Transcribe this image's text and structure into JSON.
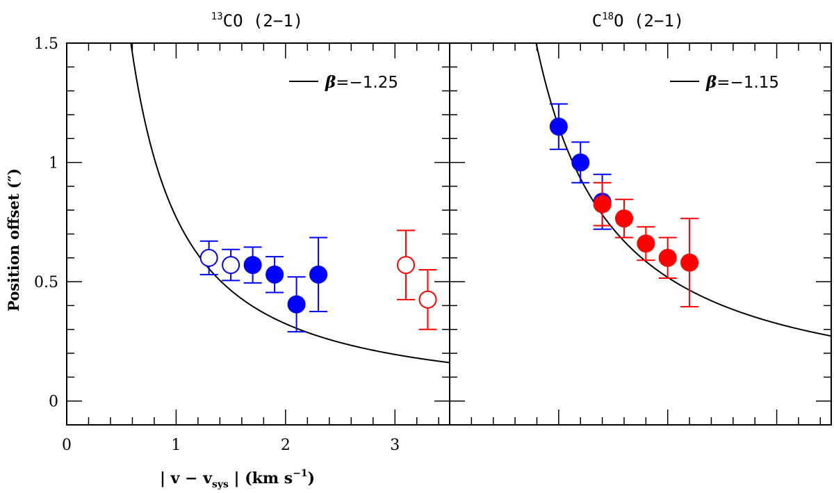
{
  "colors": {
    "blue": "#0000ff",
    "red": "#ff0000",
    "black": "#000000"
  },
  "chart_data": {
    "type": "scatter",
    "ylabel": "Position offset (″)",
    "xlabel": {
      "pre": "| v − v",
      "sub": "sys",
      "mid": " | (km s",
      "sup": "−1",
      "post": ")"
    },
    "ylim": [
      -0.1,
      1.5
    ],
    "y_ticks": [
      "0",
      "0.5",
      "1",
      "1.5"
    ],
    "y_tick_values": [
      0,
      0.5,
      1,
      1.5
    ],
    "panels": [
      {
        "title": {
          "sup": "13",
          "main": "CO (2−1)"
        },
        "xlim": [
          0,
          3.5
        ],
        "x_ticks": [
          "0",
          "1",
          "2",
          "3"
        ],
        "x_tick_values": [
          0,
          1,
          2,
          3
        ],
        "legend": {
          "beta": "β",
          "text": "=−1.25"
        },
        "model": {
          "beta": -1.25,
          "y_at_1": 0.77
        },
        "series": [
          {
            "name": "blue",
            "color": "#0000ff",
            "x": [
              1.3,
              1.5
            ],
            "y": [
              0.6,
              0.57
            ],
            "err": [
              0.07,
              0.065
            ],
            "filled": false
          },
          {
            "name": "blue",
            "color": "#0000ff",
            "x": [
              1.7,
              1.9,
              2.1,
              2.3
            ],
            "y": [
              0.57,
              0.53,
              0.405,
              0.53
            ],
            "err": [
              0.075,
              0.075,
              0.115,
              0.155
            ],
            "filled": true
          },
          {
            "name": "red",
            "color": "#ff0000",
            "x": [
              3.1,
              3.3
            ],
            "y": [
              0.57,
              0.425
            ],
            "err": [
              0.145,
              0.125
            ],
            "filled": false
          }
        ]
      },
      {
        "title": {
          "pre": "C",
          "sup": "18",
          "main": "O (2−1)"
        },
        "xlim": [
          0,
          3.5
        ],
        "x_ticks": [],
        "x_tick_values": [],
        "legend": {
          "beta": "β",
          "text": "=−1.15"
        },
        "model": {
          "beta": -1.15,
          "y_at_1": 1.15
        },
        "series": [
          {
            "name": "blue",
            "color": "#0000ff",
            "x": [
              1.0,
              1.2,
              1.4
            ],
            "y": [
              1.15,
              1.0,
              0.835
            ],
            "err": [
              0.095,
              0.085,
              0.115
            ],
            "filled": true
          },
          {
            "name": "red",
            "color": "#ff0000",
            "x": [
              1.4,
              1.6,
              1.8,
              2.0,
              2.2
            ],
            "y": [
              0.825,
              0.765,
              0.66,
              0.6,
              0.58
            ],
            "err": [
              0.09,
              0.08,
              0.07,
              0.085,
              0.185
            ],
            "filled": true
          }
        ]
      }
    ]
  }
}
